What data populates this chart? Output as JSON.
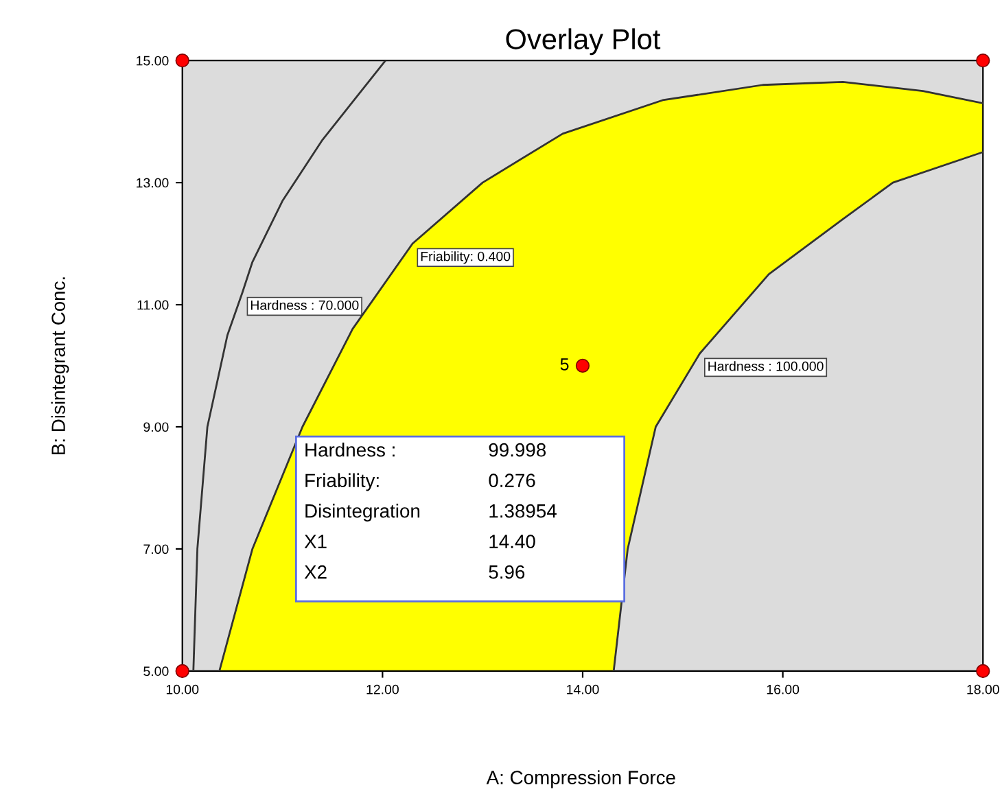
{
  "chart_data": {
    "type": "line",
    "title": "Overlay Plot",
    "xlabel": "A: Compression Force",
    "ylabel": "B: Disintegrant Conc.",
    "xlim": [
      10,
      18
    ],
    "ylim": [
      5,
      15
    ],
    "xticks": [
      {
        "value": 10,
        "label": "10.00"
      },
      {
        "value": 12,
        "label": "12.00"
      },
      {
        "value": 14,
        "label": "14.00"
      },
      {
        "value": 16,
        "label": "16.00"
      },
      {
        "value": 18,
        "label": "18.00"
      }
    ],
    "yticks": [
      {
        "value": 5,
        "label": "5.00"
      },
      {
        "value": 7,
        "label": "7.00"
      },
      {
        "value": 9,
        "label": "9.00"
      },
      {
        "value": 11,
        "label": "11.00"
      },
      {
        "value": 13,
        "label": "13.00"
      },
      {
        "value": 15,
        "label": "15.00"
      }
    ],
    "grid": false,
    "series": [
      {
        "type": "area",
        "color": "#ffff00",
        "x": [
          10.37,
          10.7,
          11.2,
          11.7,
          12.3,
          13.0,
          13.8,
          14.8,
          15.8,
          16.6,
          17.4,
          18
        ],
        "values": [
          5,
          7,
          9,
          10.6,
          12.0,
          13.0,
          13.8,
          14.35,
          14.6,
          14.65,
          14.5,
          14.3
        ]
      },
      {
        "type": "area",
        "color": "#dcdcdc",
        "x": [
          14.31,
          14.45,
          14.73,
          15.17,
          15.86,
          16.6,
          17.1,
          18
        ],
        "values": [
          5,
          7,
          9,
          10.2,
          11.5,
          12.4,
          13.0,
          13.5
        ]
      },
      {
        "color": "#333333",
        "x": [
          10.11,
          10.15,
          10.25,
          10.45,
          10.6,
          10.7,
          11.0,
          11.4,
          12.03
        ],
        "values": [
          5,
          7,
          9,
          10.5,
          11.2,
          11.7,
          12.7,
          13.7,
          15
        ]
      },
      {
        "type": "scatter",
        "color": "#ff0000",
        "marker": "circle",
        "x": [
          10,
          10,
          18,
          18,
          14
        ],
        "values": [
          5,
          15,
          5,
          15,
          10
        ]
      }
    ],
    "annotations": [
      {
        "text": "Hardness : 70.000",
        "x": 10.6,
        "y": 11.2
      },
      {
        "text": "Friability: 0.400",
        "x": 12.3,
        "y": 12.0
      },
      {
        "text": "Hardness : 100.000",
        "x": 15.17,
        "y": 10.2
      },
      {
        "text": "5",
        "x": 14,
        "y": 10
      },
      "Hardness :",
      "99.998",
      "Friability:",
      "0.276",
      "Disintegration",
      "1.38954",
      "X1",
      "14.40",
      "X2",
      "5.96"
    ]
  }
}
